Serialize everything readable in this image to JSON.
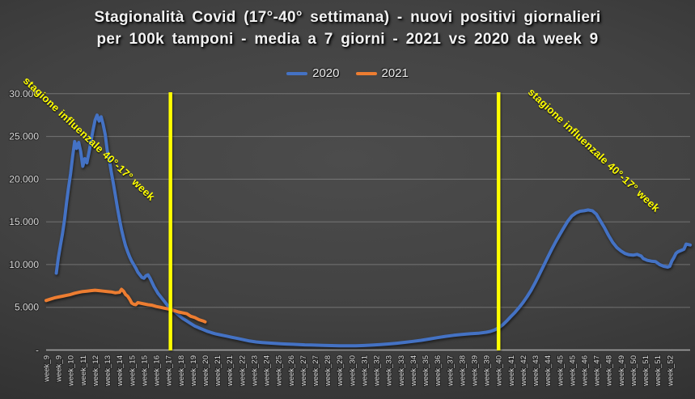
{
  "title": {
    "line1": "Stagionalità Covid (17°-40° settimana) - nuovi positivi giornalieri",
    "line2": "per 100k tamponi - media a 7 giorni - 2021 vs 2020 da week 9"
  },
  "legend": {
    "items": [
      {
        "label": "2020",
        "color": "#4472C4"
      },
      {
        "label": "2021",
        "color": "#ED7D31"
      }
    ]
  },
  "annotations": {
    "left": "stagione influenzale 40°-17° week",
    "right": "stagione influenzale 40°-17° week",
    "color": "#FFFF00"
  },
  "colors": {
    "background_center": "#4c4c4c",
    "background_edge": "#242424",
    "gridline": "rgba(217,217,217,0.32)",
    "axis": "#a6a6a6",
    "tick_label": "#d9d9d9",
    "title_text": "#f2f2f2",
    "series_2020": "#4472C4",
    "series_2021": "#ED7D31",
    "vline": "#FFFF00"
  },
  "chart_data": {
    "type": "line",
    "title": "Stagionalità Covid (17°-40° settimana) - nuovi positivi giornalieri per 100k tamponi - media a 7 giorni - 2021 vs 2020 da week 9",
    "x_unit": "days from start of week_9 (daily values, media a 7 giorni)",
    "xlim_days": [
      0,
      316
    ],
    "ylim": [
      0,
      30000
    ],
    "grid": true,
    "legend_position": "top-center",
    "x_tick_interval_days": 6,
    "x_tick_labels": [
      "week_9",
      "week_9",
      "week_10",
      "week_11",
      "week_12",
      "week_13",
      "week_14",
      "week_15",
      "week_15",
      "week_16",
      "week_17",
      "week_18",
      "week_19",
      "week_20",
      "week_21",
      "week_21",
      "week_22",
      "week_23",
      "week_24",
      "week_25",
      "week_26",
      "week_27",
      "week_27",
      "week_28",
      "week_29",
      "week_30",
      "week_31",
      "week_32",
      "week_33",
      "week_33",
      "week_34",
      "week_35",
      "week_36",
      "week_37",
      "week_38",
      "week_39",
      "week_39",
      "week_40",
      "week_41",
      "week_42",
      "week_43",
      "week_44",
      "week_45",
      "week_45",
      "week_46",
      "week_47",
      "week_48",
      "week_49",
      "week_50",
      "week_51",
      "week_51",
      "week_52"
    ],
    "y_ticks": [
      {
        "value": 0,
        "label": "-"
      },
      {
        "value": 5000,
        "label": "5.000"
      },
      {
        "value": 10000,
        "label": "10.000"
      },
      {
        "value": 15000,
        "label": "15.000"
      },
      {
        "value": 20000,
        "label": "20.000"
      },
      {
        "value": 25000,
        "label": "25.000"
      },
      {
        "value": 30000,
        "label": "30.000"
      }
    ],
    "vlines": [
      {
        "day": 61,
        "at_label": "week_17",
        "color": "#FFFF00"
      },
      {
        "day": 222,
        "at_label": "week_40",
        "color": "#FFFF00"
      }
    ],
    "series": [
      {
        "name": "2020",
        "color": "#4472C4",
        "points": [
          [
            5,
            9000
          ],
          [
            6,
            10800
          ],
          [
            7,
            12200
          ],
          [
            8,
            13600
          ],
          [
            9,
            15200
          ],
          [
            10,
            17200
          ],
          [
            11,
            19000
          ],
          [
            12,
            20600
          ],
          [
            13,
            22600
          ],
          [
            14,
            24400
          ],
          [
            15,
            23600
          ],
          [
            16,
            24300
          ],
          [
            17,
            23200
          ],
          [
            18,
            21500
          ],
          [
            19,
            22400
          ],
          [
            20,
            21900
          ],
          [
            21,
            23100
          ],
          [
            22,
            24400
          ],
          [
            23,
            25700
          ],
          [
            24,
            26900
          ],
          [
            25,
            27500
          ],
          [
            26,
            26800
          ],
          [
            27,
            27300
          ],
          [
            28,
            26400
          ],
          [
            29,
            25200
          ],
          [
            30,
            23300
          ],
          [
            31,
            22300
          ],
          [
            32,
            20800
          ],
          [
            33,
            19500
          ],
          [
            34,
            18100
          ],
          [
            35,
            16600
          ],
          [
            36,
            15300
          ],
          [
            37,
            14100
          ],
          [
            38,
            13100
          ],
          [
            39,
            12200
          ],
          [
            40,
            11500
          ],
          [
            41,
            10900
          ],
          [
            42,
            10400
          ],
          [
            43,
            10000
          ],
          [
            44,
            9600
          ],
          [
            45,
            9100
          ],
          [
            46,
            8800
          ],
          [
            47,
            8500
          ],
          [
            48,
            8400
          ],
          [
            49,
            8700
          ],
          [
            50,
            8800
          ],
          [
            51,
            8400
          ],
          [
            52,
            7900
          ],
          [
            53,
            7400
          ],
          [
            54,
            7000
          ],
          [
            55,
            6600
          ],
          [
            56,
            6300
          ],
          [
            57,
            6000
          ],
          [
            58,
            5700
          ],
          [
            59,
            5400
          ],
          [
            60,
            5100
          ],
          [
            61,
            4900
          ],
          [
            63,
            4500
          ],
          [
            65,
            4100
          ],
          [
            67,
            3700
          ],
          [
            69,
            3400
          ],
          [
            71,
            3100
          ],
          [
            73,
            2800
          ],
          [
            75,
            2600
          ],
          [
            77,
            2400
          ],
          [
            79,
            2200
          ],
          [
            81,
            2050
          ],
          [
            83,
            1900
          ],
          [
            85,
            1800
          ],
          [
            87,
            1700
          ],
          [
            89,
            1600
          ],
          [
            91,
            1500
          ],
          [
            94,
            1350
          ],
          [
            97,
            1200
          ],
          [
            100,
            1050
          ],
          [
            103,
            950
          ],
          [
            106,
            880
          ],
          [
            109,
            820
          ],
          [
            112,
            780
          ],
          [
            115,
            740
          ],
          [
            118,
            700
          ],
          [
            121,
            670
          ],
          [
            124,
            640
          ],
          [
            127,
            610
          ],
          [
            130,
            590
          ],
          [
            133,
            570
          ],
          [
            136,
            550
          ],
          [
            140,
            520
          ],
          [
            144,
            500
          ],
          [
            148,
            490
          ],
          [
            152,
            500
          ],
          [
            156,
            530
          ],
          [
            160,
            580
          ],
          [
            164,
            640
          ],
          [
            168,
            710
          ],
          [
            172,
            800
          ],
          [
            176,
            900
          ],
          [
            180,
            1010
          ],
          [
            184,
            1140
          ],
          [
            188,
            1290
          ],
          [
            192,
            1450
          ],
          [
            196,
            1600
          ],
          [
            200,
            1720
          ],
          [
            204,
            1820
          ],
          [
            208,
            1900
          ],
          [
            212,
            1960
          ],
          [
            216,
            2080
          ],
          [
            218,
            2180
          ],
          [
            220,
            2350
          ],
          [
            222,
            2600
          ],
          [
            224,
            2950
          ],
          [
            226,
            3400
          ],
          [
            228,
            3900
          ],
          [
            230,
            4400
          ],
          [
            232,
            4950
          ],
          [
            234,
            5550
          ],
          [
            236,
            6250
          ],
          [
            238,
            7000
          ],
          [
            240,
            7900
          ],
          [
            242,
            8850
          ],
          [
            244,
            9800
          ],
          [
            246,
            10800
          ],
          [
            248,
            11750
          ],
          [
            250,
            12650
          ],
          [
            252,
            13500
          ],
          [
            254,
            14300
          ],
          [
            256,
            15100
          ],
          [
            258,
            15700
          ],
          [
            260,
            16050
          ],
          [
            262,
            16250
          ],
          [
            264,
            16300
          ],
          [
            266,
            16400
          ],
          [
            268,
            16300
          ],
          [
            270,
            15900
          ],
          [
            271,
            15500
          ],
          [
            272,
            15100
          ],
          [
            273,
            14700
          ],
          [
            274,
            14300
          ],
          [
            275,
            13850
          ],
          [
            276,
            13400
          ],
          [
            277,
            13000
          ],
          [
            278,
            12600
          ],
          [
            280,
            12000
          ],
          [
            282,
            11600
          ],
          [
            284,
            11300
          ],
          [
            286,
            11150
          ],
          [
            288,
            11100
          ],
          [
            290,
            11200
          ],
          [
            292,
            11000
          ],
          [
            293,
            10700
          ],
          [
            295,
            10500
          ],
          [
            297,
            10400
          ],
          [
            299,
            10350
          ],
          [
            301,
            10000
          ],
          [
            303,
            9800
          ],
          [
            305,
            9700
          ],
          [
            306,
            9800
          ],
          [
            307,
            10400
          ],
          [
            308,
            10800
          ],
          [
            309,
            11300
          ],
          [
            310,
            11500
          ],
          [
            312,
            11700
          ],
          [
            313,
            11800
          ],
          [
            314,
            12400
          ],
          [
            316,
            12300
          ]
        ]
      },
      {
        "name": "2021",
        "color": "#ED7D31",
        "points": [
          [
            0,
            5800
          ],
          [
            2,
            5950
          ],
          [
            4,
            6100
          ],
          [
            6,
            6200
          ],
          [
            8,
            6300
          ],
          [
            10,
            6400
          ],
          [
            12,
            6500
          ],
          [
            14,
            6650
          ],
          [
            16,
            6750
          ],
          [
            18,
            6850
          ],
          [
            20,
            6900
          ],
          [
            22,
            6950
          ],
          [
            24,
            7000
          ],
          [
            26,
            6950
          ],
          [
            28,
            6900
          ],
          [
            30,
            6850
          ],
          [
            32,
            6800
          ],
          [
            34,
            6700
          ],
          [
            36,
            6750
          ],
          [
            37,
            7100
          ],
          [
            38,
            6900
          ],
          [
            39,
            6500
          ],
          [
            40,
            6300
          ],
          [
            41,
            5950
          ],
          [
            42,
            5500
          ],
          [
            43,
            5350
          ],
          [
            44,
            5300
          ],
          [
            45,
            5550
          ],
          [
            46,
            5500
          ],
          [
            48,
            5400
          ],
          [
            50,
            5300
          ],
          [
            52,
            5250
          ],
          [
            54,
            5100
          ],
          [
            56,
            5000
          ],
          [
            58,
            4900
          ],
          [
            60,
            4800
          ],
          [
            61,
            4750
          ],
          [
            63,
            4600
          ],
          [
            65,
            4450
          ],
          [
            67,
            4350
          ],
          [
            69,
            4250
          ],
          [
            70,
            4100
          ],
          [
            71,
            3950
          ],
          [
            73,
            3800
          ],
          [
            75,
            3550
          ],
          [
            77,
            3400
          ],
          [
            78,
            3300
          ]
        ]
      }
    ]
  }
}
